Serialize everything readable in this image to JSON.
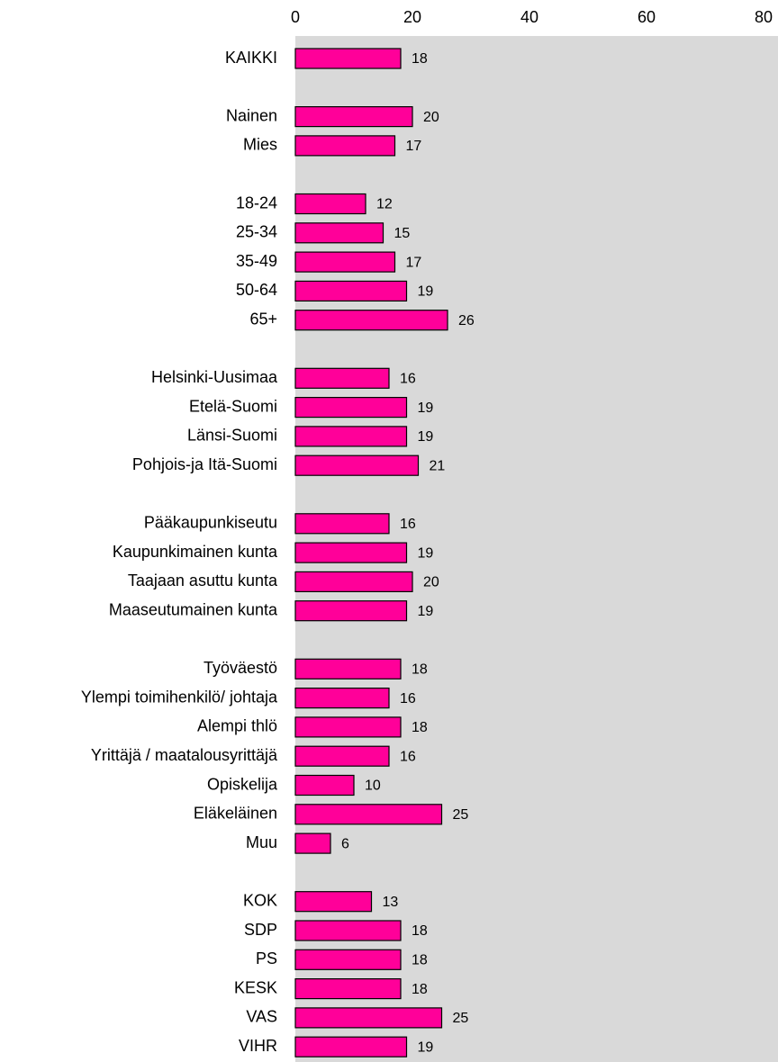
{
  "chart_data": {
    "type": "bar",
    "orientation": "horizontal",
    "categories": [
      "KAIKKI",
      null,
      "Nainen",
      "Mies",
      null,
      "18-24",
      "25-34",
      "35-49",
      "50-64",
      "65+",
      null,
      "Helsinki-Uusimaa",
      "Etelä-Suomi",
      "Länsi-Suomi",
      "Pohjois-ja Itä-Suomi",
      null,
      "Pääkaupunkiseutu",
      "Kaupunkimainen kunta",
      "Taajaan asuttu kunta",
      "Maaseutumainen kunta",
      null,
      "Työväestö",
      "Ylempi toimihenkilö/ johtaja",
      "Alempi thlö",
      "Yrittäjä / maatalousyrittäjä",
      "Opiskelija",
      "Eläkeläinen",
      "Muu",
      null,
      "KOK",
      "SDP",
      "PS",
      "KESK",
      "VAS",
      "VIHR"
    ],
    "values": [
      18,
      null,
      20,
      17,
      null,
      12,
      15,
      17,
      19,
      26,
      null,
      16,
      19,
      19,
      21,
      null,
      16,
      19,
      20,
      19,
      null,
      18,
      16,
      18,
      16,
      10,
      25,
      6,
      null,
      13,
      18,
      18,
      18,
      25,
      19
    ],
    "color": "#ff0099",
    "background": "#d9d9d9",
    "xlim": [
      0,
      80
    ],
    "xticks": [
      0,
      20,
      40,
      60,
      80
    ],
    "grid": false
  }
}
